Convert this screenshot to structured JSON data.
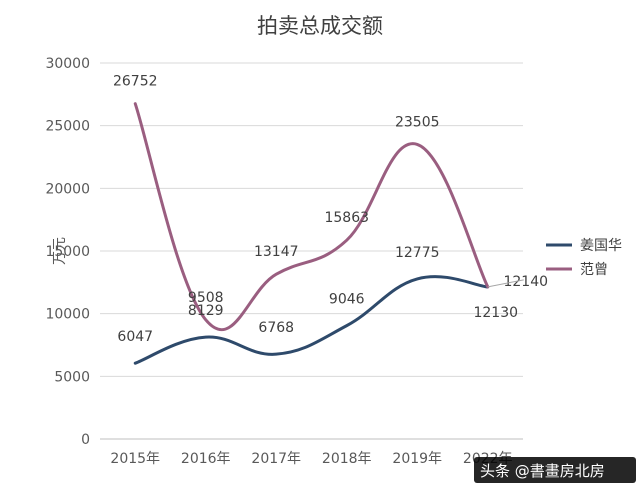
{
  "chart_data": {
    "type": "line",
    "title": "拍卖总成交额",
    "ylabel": "万元",
    "xlabel": "",
    "categories": [
      "2015年",
      "2016年",
      "2017年",
      "2018年",
      "2019年",
      "2022年"
    ],
    "ylim": [
      0,
      30000
    ],
    "yticks": [
      0,
      5000,
      10000,
      15000,
      20000,
      25000,
      30000
    ],
    "grid": true,
    "smooth": true,
    "legend_position": "right",
    "series": [
      {
        "name": "姜国华",
        "color": "#2e4a6b",
        "values": [
          6047,
          8129,
          6768,
          9046,
          12775,
          12130
        ]
      },
      {
        "name": "范曾",
        "color": "#9a5e80",
        "values": [
          26752,
          9508,
          13147,
          15863,
          23505,
          12140
        ]
      }
    ]
  },
  "watermark": {
    "text": "头条 @書畫房北房"
  }
}
